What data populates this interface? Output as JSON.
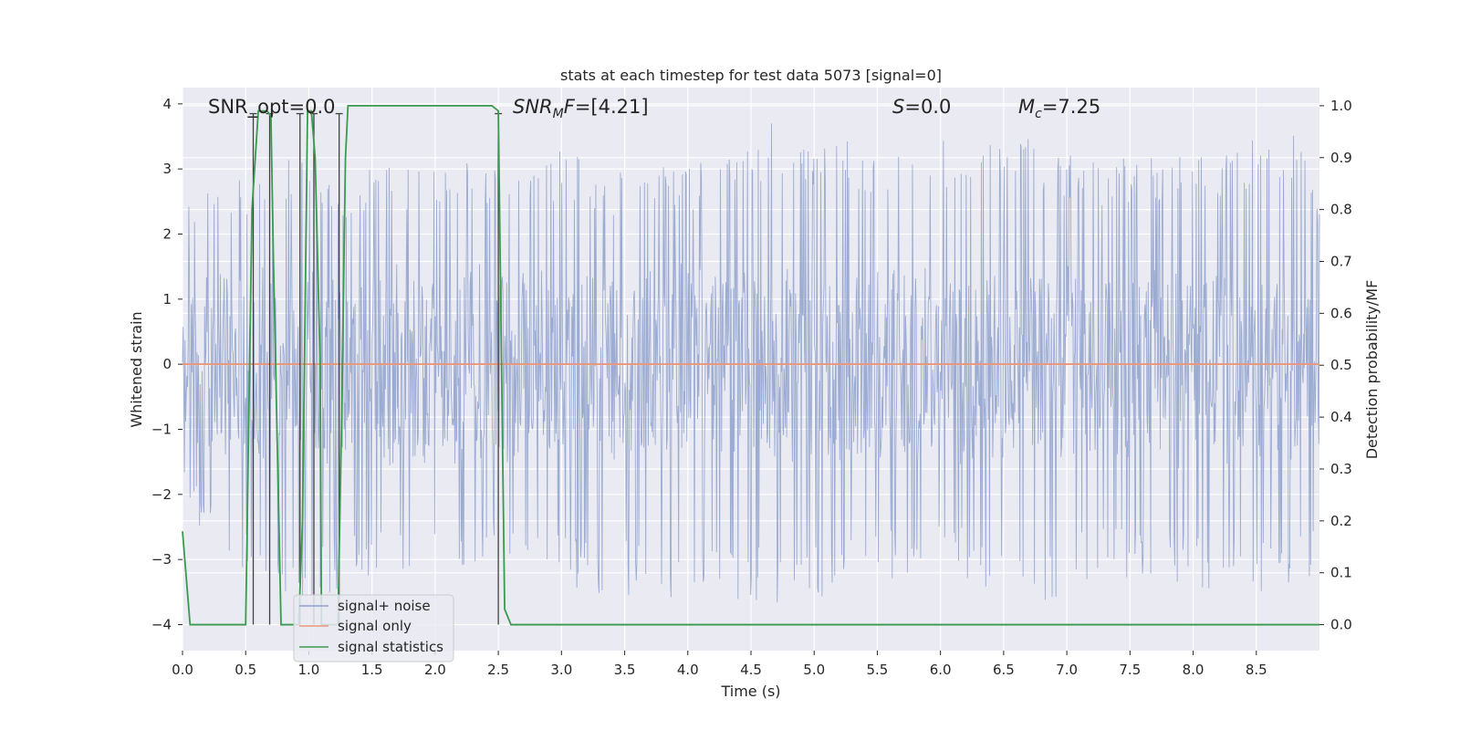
{
  "chart_data": {
    "type": "line",
    "title": "stats at each timestep for test data 5073 [signal=0]",
    "xlabel": "Time (s)",
    "ylabel": "Whitened strain",
    "ylabel_right": "Detection probability/MF",
    "xlim": [
      0,
      9.0
    ],
    "ylim": [
      -4.4,
      4.25
    ],
    "ylim_right": [
      -0.05,
      1.035
    ],
    "xticks": [
      "0.0",
      "0.5",
      "1.0",
      "1.5",
      "2.0",
      "2.5",
      "3.0",
      "3.5",
      "4.0",
      "4.5",
      "5.0",
      "5.5",
      "6.0",
      "6.5",
      "7.0",
      "7.5",
      "8.0",
      "8.5"
    ],
    "yticks_left": [
      "4",
      "3",
      "2",
      "1",
      "0",
      "−1",
      "−2",
      "−3",
      "−4"
    ],
    "yticks_right": [
      "1.0",
      "0.9",
      "0.8",
      "0.7",
      "0.6",
      "0.5",
      "0.4",
      "0.3",
      "0.2",
      "0.1",
      "0.0"
    ],
    "grid": true,
    "annotations": {
      "snr_opt": "SNR_opt=0.0",
      "snr_mf": "=[4.21]",
      "s_value": "=0.0",
      "mc_value": "=7.25"
    },
    "legend": {
      "position": "lower-left",
      "entries": [
        "signal+ noise",
        "signal only",
        "signal statistics"
      ]
    },
    "colors": {
      "signal_noise": "#8da0cb",
      "signal_only": "#e9967a",
      "signal_statistics": "#3a9a4f",
      "vlines": "#404040",
      "background": "#eaeaf2"
    },
    "series": [
      {
        "name": "signal+ noise",
        "description_values": "whitened noise, amplitude mostly within ±2.5",
        "envelope_upper": [
          [
            0,
            2.1
          ],
          [
            0.1,
            2.8
          ],
          [
            0.35,
            3.0
          ],
          [
            0.55,
            2.8
          ],
          [
            0.7,
            3.1
          ],
          [
            1.0,
            3.2
          ],
          [
            1.3,
            3.0
          ],
          [
            1.75,
            3.1
          ],
          [
            2.0,
            3.2
          ],
          [
            2.45,
            3.0
          ],
          [
            3.0,
            3.3
          ],
          [
            3.5,
            3.0
          ],
          [
            4.0,
            3.1
          ],
          [
            4.4,
            3.2
          ],
          [
            4.7,
            3.8
          ],
          [
            5.5,
            3.3
          ],
          [
            6.5,
            3.8
          ],
          [
            7.2,
            3.1
          ],
          [
            8.0,
            3.3
          ],
          [
            8.8,
            3.6
          ],
          [
            9.0,
            2.6
          ]
        ],
        "envelope_lower": [
          [
            0,
            -2.1
          ],
          [
            0.3,
            -3.0
          ],
          [
            0.95,
            -3.7
          ],
          [
            2.0,
            -3.0
          ],
          [
            3.5,
            -3.6
          ],
          [
            4.4,
            -3.8
          ],
          [
            5.55,
            -3.4
          ],
          [
            6.0,
            -3.1
          ],
          [
            6.75,
            -3.85
          ],
          [
            7.25,
            -3.2
          ],
          [
            8.5,
            -3.6
          ],
          [
            9.0,
            -3.3
          ]
        ]
      },
      {
        "name": "signal only",
        "x": [
          0,
          9.0
        ],
        "y": [
          0,
          0
        ]
      },
      {
        "name": "signal statistics",
        "axis": "right",
        "x": [
          0,
          0.06,
          0.12,
          0.5,
          0.55,
          0.6,
          0.63,
          0.67,
          0.7,
          0.72,
          0.78,
          0.8,
          0.92,
          0.95,
          0.99,
          1.02,
          1.05,
          1.09,
          1.1,
          1.23,
          1.26,
          1.29,
          1.31,
          1.33,
          2.3,
          2.45,
          2.5,
          2.55,
          2.6,
          9.0
        ],
        "y": [
          0.18,
          0.0,
          0.0,
          0.0,
          0.8,
          0.99,
          0.99,
          0.99,
          0.98,
          0.7,
          0.0,
          0.0,
          0.0,
          0.2,
          0.99,
          0.99,
          0.9,
          0.5,
          0.0,
          0.0,
          0.4,
          0.9,
          1.0,
          1.0,
          1.0,
          1.0,
          0.99,
          0.03,
          0.0,
          0.0
        ]
      }
    ],
    "vlines": [
      0.56,
      0.69,
      0.93,
      1.04,
      1.24,
      2.5
    ]
  }
}
